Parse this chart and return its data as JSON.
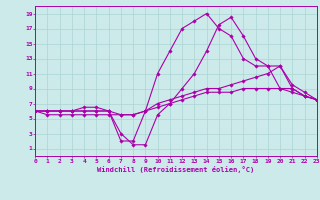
{
  "xlabel": "Windchill (Refroidissement éolien,°C)",
  "ylabel": "",
  "bg_color": "#cceaea",
  "grid_color": "#aad4d4",
  "line_color": "#aa00aa",
  "x_min": 0,
  "x_max": 23,
  "y_min": 0,
  "y_max": 20,
  "y_ticks": [
    1,
    3,
    5,
    7,
    9,
    11,
    13,
    15,
    17,
    19
  ],
  "x_ticks": [
    0,
    1,
    2,
    3,
    4,
    5,
    6,
    7,
    8,
    9,
    10,
    11,
    12,
    13,
    14,
    15,
    16,
    17,
    18,
    19,
    20,
    21,
    22,
    23
  ],
  "series": [
    {
      "x": [
        0,
        1,
        2,
        3,
        4,
        5,
        6,
        7,
        8,
        9,
        10,
        11,
        12,
        13,
        14,
        15,
        16,
        17,
        18,
        19,
        20,
        21,
        22,
        23
      ],
      "y": [
        6,
        6,
        6,
        6,
        6,
        6,
        6,
        2,
        2,
        6,
        11,
        14,
        17,
        18,
        19,
        17,
        16,
        13,
        12,
        12,
        9,
        9,
        8,
        7.5
      ]
    },
    {
      "x": [
        0,
        1,
        2,
        3,
        4,
        5,
        6,
        7,
        8,
        9,
        10,
        11,
        12,
        13,
        14,
        15,
        16,
        17,
        18,
        19,
        20,
        21,
        22,
        23
      ],
      "y": [
        6,
        6,
        6,
        6,
        6.5,
        6.5,
        6,
        5.5,
        5.5,
        6,
        7,
        7.5,
        8,
        8.5,
        9,
        9,
        9.5,
        10,
        10.5,
        11,
        12,
        9.5,
        8.5,
        7.5
      ]
    },
    {
      "x": [
        0,
        1,
        2,
        3,
        4,
        5,
        6,
        7,
        8,
        9,
        10,
        11,
        12,
        13,
        14,
        15,
        16,
        17,
        18,
        19,
        20,
        21,
        22,
        23
      ],
      "y": [
        6,
        6,
        6,
        6,
        6,
        6,
        6,
        3,
        1.5,
        1.5,
        5.5,
        7,
        9,
        11,
        14,
        17.5,
        18.5,
        16,
        13,
        12,
        12,
        9,
        8,
        7.5
      ]
    },
    {
      "x": [
        0,
        1,
        2,
        3,
        4,
        5,
        6,
        7,
        8,
        9,
        10,
        11,
        12,
        13,
        14,
        15,
        16,
        17,
        18,
        19,
        20,
        21,
        22,
        23
      ],
      "y": [
        6,
        5.5,
        5.5,
        5.5,
        5.5,
        5.5,
        5.5,
        5.5,
        5.5,
        6,
        6.5,
        7,
        7.5,
        8,
        8.5,
        8.5,
        8.5,
        9,
        9,
        9,
        9,
        8.5,
        8,
        7.5
      ]
    }
  ]
}
